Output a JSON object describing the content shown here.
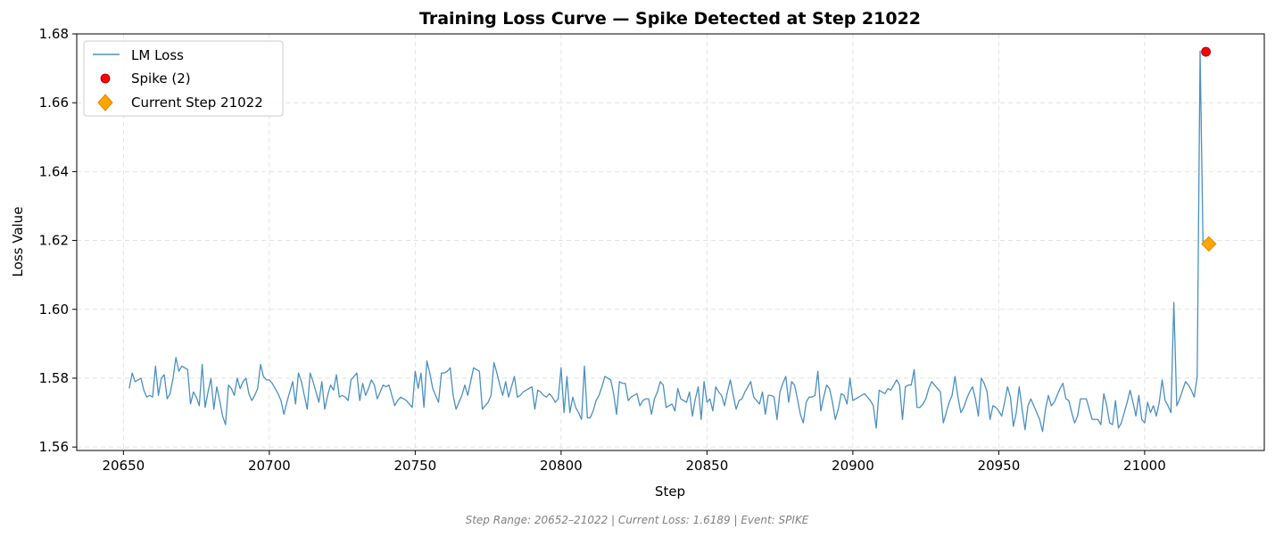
{
  "chart_data": {
    "type": "line",
    "title": "Training Loss Curve — Spike Detected at Step 21022",
    "xlabel": "Step",
    "ylabel": "Loss Value",
    "xlim": [
      20634,
      21041
    ],
    "ylim": [
      1.559,
      1.68
    ],
    "x_ticks": [
      20650,
      20700,
      20750,
      20800,
      20850,
      20900,
      20950,
      21000
    ],
    "y_ticks": [
      1.56,
      1.58,
      1.6,
      1.62,
      1.64,
      1.66,
      1.68
    ],
    "grid": true,
    "legend_position": "top-left",
    "footer": "Step Range: 20652–21022 | Current Loss: 1.6189 | Event: SPIKE",
    "series": [
      {
        "name": "LM Loss",
        "kind": "line",
        "color": "#4a90c2",
        "x_start": 20652,
        "x_step": 1,
        "values": [
          1.577,
          1.5815,
          1.579,
          1.5795,
          1.58,
          1.5765,
          1.5745,
          1.575,
          1.5745,
          1.5835,
          1.575,
          1.58,
          1.581,
          1.574,
          1.5755,
          1.58,
          1.586,
          1.582,
          1.5835,
          1.583,
          1.5825,
          1.5725,
          1.576,
          1.5745,
          1.572,
          1.584,
          1.5715,
          1.576,
          1.58,
          1.571,
          1.5775,
          1.5735,
          1.569,
          1.5665,
          1.578,
          1.577,
          1.575,
          1.58,
          1.577,
          1.579,
          1.58,
          1.5755,
          1.5735,
          1.575,
          1.577,
          1.584,
          1.5805,
          1.5795,
          1.5795,
          1.5785,
          1.577,
          1.5755,
          1.5735,
          1.5695,
          1.573,
          1.576,
          1.579,
          1.5725,
          1.5815,
          1.579,
          1.575,
          1.571,
          1.5815,
          1.579,
          1.576,
          1.573,
          1.579,
          1.571,
          1.575,
          1.578,
          1.5765,
          1.581,
          1.5745,
          1.575,
          1.5745,
          1.5735,
          1.5795,
          1.5805,
          1.5815,
          1.5735,
          1.5785,
          1.575,
          1.577,
          1.5795,
          1.578,
          1.574,
          1.576,
          1.578,
          1.5775,
          1.578,
          1.575,
          1.572,
          1.5735,
          1.5745,
          1.574,
          1.5735,
          1.5725,
          1.5715,
          1.582,
          1.577,
          1.5815,
          1.5715,
          1.585,
          1.5815,
          1.577,
          1.575,
          1.573,
          1.5815,
          1.5815,
          1.582,
          1.583,
          1.575,
          1.571,
          1.573,
          1.575,
          1.578,
          1.575,
          1.579,
          1.583,
          1.5825,
          1.582,
          1.571,
          1.572,
          1.573,
          1.575,
          1.5845,
          1.5815,
          1.578,
          1.575,
          1.579,
          1.5745,
          1.5775,
          1.5805,
          1.5745,
          1.575,
          1.576,
          1.5765,
          1.577,
          1.5775,
          1.571,
          1.5765,
          1.576,
          1.575,
          1.5745,
          1.5755,
          1.5745,
          1.573,
          1.574,
          1.583,
          1.57,
          1.5805,
          1.57,
          1.5745,
          1.5715,
          1.57,
          1.568,
          1.5835,
          1.5685,
          1.5685,
          1.5705,
          1.5735,
          1.575,
          1.5775,
          1.5805,
          1.58,
          1.5795,
          1.5755,
          1.5695,
          1.579,
          1.5785,
          1.5785,
          1.5735,
          1.5745,
          1.575,
          1.5755,
          1.572,
          1.5735,
          1.574,
          1.574,
          1.5695,
          1.574,
          1.576,
          1.579,
          1.578,
          1.5715,
          1.572,
          1.5725,
          1.5705,
          1.577,
          1.574,
          1.5735,
          1.573,
          1.576,
          1.569,
          1.574,
          1.5775,
          1.568,
          1.579,
          1.573,
          1.574,
          1.5705,
          1.5775,
          1.576,
          1.575,
          1.572,
          1.576,
          1.5795,
          1.575,
          1.571,
          1.5735,
          1.574,
          1.576,
          1.5775,
          1.579,
          1.5745,
          1.5735,
          1.5725,
          1.576,
          1.5695,
          1.575,
          1.575,
          1.5745,
          1.568,
          1.576,
          1.5785,
          1.5805,
          1.573,
          1.579,
          1.578,
          1.574,
          1.5695,
          1.567,
          1.573,
          1.5745,
          1.5745,
          1.575,
          1.582,
          1.5705,
          1.5745,
          1.578,
          1.577,
          1.573,
          1.568,
          1.571,
          1.5755,
          1.575,
          1.5725,
          1.58,
          1.5735,
          1.574,
          1.5745,
          1.575,
          1.5755,
          1.5745,
          1.5735,
          1.572,
          1.5655,
          1.5765,
          1.576,
          1.5755,
          1.577,
          1.5765,
          1.578,
          1.5795,
          1.578,
          1.568,
          1.5775,
          1.578,
          1.578,
          1.5825,
          1.5715,
          1.5715,
          1.5725,
          1.574,
          1.577,
          1.579,
          1.578,
          1.577,
          1.576,
          1.567,
          1.57,
          1.573,
          1.575,
          1.5805,
          1.5745,
          1.57,
          1.5715,
          1.574,
          1.576,
          1.5775,
          1.574,
          1.569,
          1.58,
          1.5785,
          1.576,
          1.568,
          1.572,
          1.5715,
          1.5705,
          1.569,
          1.573,
          1.5775,
          1.5745,
          1.566,
          1.57,
          1.5775,
          1.571,
          1.565,
          1.572,
          1.574,
          1.572,
          1.57,
          1.568,
          1.5645,
          1.571,
          1.575,
          1.572,
          1.573,
          1.575,
          1.577,
          1.5785,
          1.574,
          1.5735,
          1.57,
          1.567,
          1.569,
          1.574,
          1.574,
          1.574,
          1.571,
          1.568,
          1.568,
          1.568,
          1.5665,
          1.5755,
          1.572,
          1.567,
          1.5665,
          1.5735,
          1.5655,
          1.567,
          1.57,
          1.573,
          1.5765,
          1.573,
          1.569,
          1.575,
          1.568,
          1.567,
          1.573,
          1.57,
          1.572,
          1.569,
          1.573,
          1.5795,
          1.5735,
          1.572,
          1.57,
          1.602,
          1.572,
          1.574,
          1.5765,
          1.579,
          1.578,
          1.5765,
          1.5745,
          1.5805,
          1.675,
          1.6189
        ]
      },
      {
        "name": "Spike (2)",
        "kind": "scatter",
        "color": "#ff0000",
        "points": [
          {
            "x": 21021,
            "y": 1.6748
          }
        ]
      },
      {
        "name": "Current Step 21022",
        "kind": "marker",
        "color": "#ffa500",
        "points": [
          {
            "x": 21022,
            "y": 1.619
          }
        ]
      }
    ]
  }
}
